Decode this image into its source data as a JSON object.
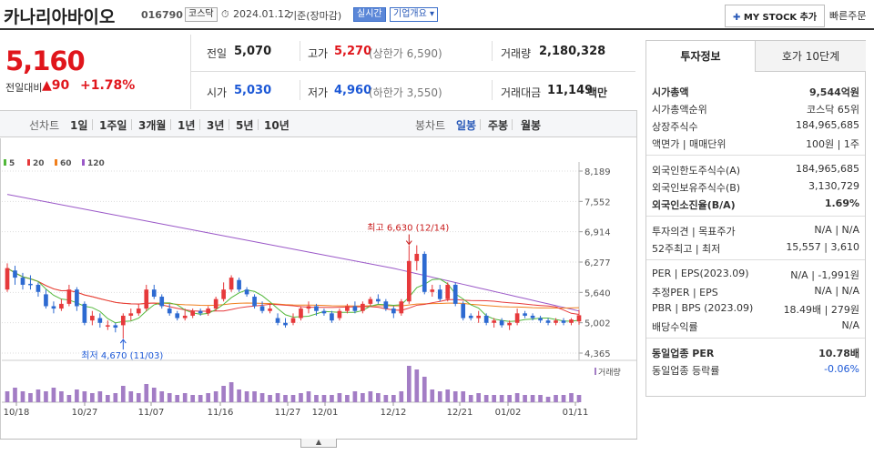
{
  "header": {
    "name": "카나리아바이오",
    "code": "016790",
    "market": "코스닥",
    "date": "2024.01.12",
    "basis": "기준(장마감)",
    "realtime": "실시간",
    "company_info": "기업개요",
    "mystock": "MY STOCK 추가",
    "quick_order": "빠른주문"
  },
  "price": {
    "current": "5,160",
    "change_label": "전일대비",
    "change": "90",
    "change_pct": "+1.78%"
  },
  "summary": {
    "prev_label": "전일",
    "prev": "5,070",
    "high_label": "고가",
    "high": "5,270",
    "upper_limit": "(상한가 6,590)",
    "volume_label": "거래량",
    "volume": "2,180,328",
    "open_label": "시가",
    "open": "5,030",
    "low_label": "저가",
    "low": "4,960",
    "lower_limit": "(하한가 3,550)",
    "amount_label": "거래대금",
    "amount": "11,149",
    "amount_unit": "백만"
  },
  "toolbar": {
    "line_label": "선차트",
    "periods": [
      "1일",
      "1주일",
      "3개월",
      "1년",
      "3년",
      "5년",
      "10년"
    ],
    "candle_label": "봉차트",
    "candles": [
      "일봉",
      "주봉",
      "월봉"
    ]
  },
  "chart_data": {
    "type": "candlestick",
    "legend": [
      {
        "name": "5",
        "color": "#52b83a"
      },
      {
        "name": "20",
        "color": "#e6393b"
      },
      {
        "name": "60",
        "color": "#f07f1d"
      },
      {
        "name": "120",
        "color": "#9b59c8"
      }
    ],
    "y_ticks": [
      "8,189",
      "7,552",
      "6,914",
      "6,277",
      "5,640",
      "5,002",
      "4,365"
    ],
    "ylim": [
      4365,
      8189
    ],
    "x_ticks": [
      "10/18",
      "10/27",
      "11/07",
      "11/16",
      "11/27",
      "12/01",
      "12/12",
      "12/21",
      "01/02",
      "01/11"
    ],
    "high_annotation": "최고 6,630 (12/14)",
    "low_annotation": "최저 4,670 (11/03)",
    "volume_label": "거래량",
    "candles": [
      {
        "o": 5700,
        "c": 6150,
        "h": 6250,
        "l": 5650
      },
      {
        "o": 6100,
        "c": 5950,
        "h": 6200,
        "l": 5800
      },
      {
        "o": 5950,
        "c": 5800,
        "h": 6050,
        "l": 5700
      },
      {
        "o": 5820,
        "c": 5800,
        "h": 6000,
        "l": 5700
      },
      {
        "o": 5800,
        "c": 5650,
        "h": 5850,
        "l": 5550
      },
      {
        "o": 5600,
        "c": 5350,
        "h": 5700,
        "l": 5300
      },
      {
        "o": 5350,
        "c": 5300,
        "h": 5450,
        "l": 5200
      },
      {
        "o": 5300,
        "c": 5400,
        "h": 5500,
        "l": 5250
      },
      {
        "o": 5400,
        "c": 5700,
        "h": 5800,
        "l": 5350
      },
      {
        "o": 5700,
        "c": 5350,
        "h": 5750,
        "l": 5250
      },
      {
        "o": 5400,
        "c": 5000,
        "h": 5450,
        "l": 4950
      },
      {
        "o": 5050,
        "c": 5150,
        "h": 5250,
        "l": 4950
      },
      {
        "o": 5100,
        "c": 5000,
        "h": 5200,
        "l": 4900
      },
      {
        "o": 4950,
        "c": 4950,
        "h": 5050,
        "l": 4850
      },
      {
        "o": 4950,
        "c": 4900,
        "h": 5000,
        "l": 4800
      },
      {
        "o": 4950,
        "c": 5150,
        "h": 5200,
        "l": 4670
      },
      {
        "o": 5150,
        "c": 5200,
        "h": 5300,
        "l": 5050
      },
      {
        "o": 5200,
        "c": 5300,
        "h": 5400,
        "l": 5150
      },
      {
        "o": 5300,
        "c": 5700,
        "h": 5800,
        "l": 5250
      },
      {
        "o": 5700,
        "c": 5550,
        "h": 5800,
        "l": 5500
      },
      {
        "o": 5550,
        "c": 5350,
        "h": 5600,
        "l": 5300
      },
      {
        "o": 5300,
        "c": 5200,
        "h": 5400,
        "l": 5150
      },
      {
        "o": 5200,
        "c": 5100,
        "h": 5250,
        "l": 5050
      },
      {
        "o": 5100,
        "c": 5150,
        "h": 5300,
        "l": 5050
      },
      {
        "o": 5150,
        "c": 5250,
        "h": 5300,
        "l": 5100
      },
      {
        "o": 5250,
        "c": 5200,
        "h": 5300,
        "l": 5150
      },
      {
        "o": 5200,
        "c": 5300,
        "h": 5350,
        "l": 5150
      },
      {
        "o": 5300,
        "c": 5500,
        "h": 5550,
        "l": 5250
      },
      {
        "o": 5500,
        "c": 5700,
        "h": 5850,
        "l": 5450
      },
      {
        "o": 5700,
        "c": 5950,
        "h": 6000,
        "l": 5650
      },
      {
        "o": 5900,
        "c": 5700,
        "h": 5950,
        "l": 5650
      },
      {
        "o": 5700,
        "c": 5600,
        "h": 5750,
        "l": 5550
      },
      {
        "o": 5550,
        "c": 5350,
        "h": 5600,
        "l": 5300
      },
      {
        "o": 5350,
        "c": 5250,
        "h": 5450,
        "l": 5200
      },
      {
        "o": 5250,
        "c": 5300,
        "h": 5400,
        "l": 5200
      },
      {
        "o": 5100,
        "c": 5000,
        "h": 5200,
        "l": 4950
      },
      {
        "o": 5000,
        "c": 4950,
        "h": 5100,
        "l": 4900
      },
      {
        "o": 5000,
        "c": 5100,
        "h": 5200,
        "l": 4950
      },
      {
        "o": 5100,
        "c": 5300,
        "h": 5350,
        "l": 5050
      },
      {
        "o": 5300,
        "c": 5350,
        "h": 5450,
        "l": 5200
      },
      {
        "o": 5350,
        "c": 5250,
        "h": 5400,
        "l": 5150
      },
      {
        "o": 5250,
        "c": 5200,
        "h": 5300,
        "l": 5150
      },
      {
        "o": 5200,
        "c": 5050,
        "h": 5250,
        "l": 5000
      },
      {
        "o": 5100,
        "c": 5250,
        "h": 5300,
        "l": 5050
      },
      {
        "o": 5250,
        "c": 5350,
        "h": 5400,
        "l": 5200
      },
      {
        "o": 5350,
        "c": 5250,
        "h": 5450,
        "l": 5200
      },
      {
        "o": 5250,
        "c": 5400,
        "h": 5450,
        "l": 5200
      },
      {
        "o": 5400,
        "c": 5500,
        "h": 5550,
        "l": 5350
      },
      {
        "o": 5500,
        "c": 5450,
        "h": 5600,
        "l": 5400
      },
      {
        "o": 5450,
        "c": 5300,
        "h": 5500,
        "l": 5250
      },
      {
        "o": 5300,
        "c": 5200,
        "h": 5350,
        "l": 5100
      },
      {
        "o": 5200,
        "c": 5450,
        "h": 5500,
        "l": 5150
      },
      {
        "o": 5450,
        "c": 6300,
        "h": 6630,
        "l": 5400
      },
      {
        "o": 6300,
        "c": 6450,
        "h": 6630,
        "l": 6100
      },
      {
        "o": 6450,
        "c": 5650,
        "h": 6500,
        "l": 5600
      },
      {
        "o": 5650,
        "c": 5700,
        "h": 5800,
        "l": 5550
      },
      {
        "o": 5700,
        "c": 5500,
        "h": 5800,
        "l": 5450
      },
      {
        "o": 5500,
        "c": 5800,
        "h": 5850,
        "l": 5450
      },
      {
        "o": 5800,
        "c": 5400,
        "h": 5850,
        "l": 5350
      },
      {
        "o": 5400,
        "c": 5100,
        "h": 5450,
        "l": 5050
      },
      {
        "o": 5150,
        "c": 5100,
        "h": 5200,
        "l": 5050
      },
      {
        "o": 5100,
        "c": 5150,
        "h": 5250,
        "l": 5000
      },
      {
        "o": 5150,
        "c": 5000,
        "h": 5200,
        "l": 4950
      },
      {
        "o": 5000,
        "c": 5050,
        "h": 5100,
        "l": 4900
      },
      {
        "o": 5050,
        "c": 4950,
        "h": 5100,
        "l": 4900
      },
      {
        "o": 4950,
        "c": 5000,
        "h": 5050,
        "l": 4850
      },
      {
        "o": 5000,
        "c": 5200,
        "h": 5300,
        "l": 4950
      },
      {
        "o": 5200,
        "c": 5150,
        "h": 5250,
        "l": 5100
      },
      {
        "o": 5150,
        "c": 5100,
        "h": 5200,
        "l": 5050
      },
      {
        "o": 5100,
        "c": 5050,
        "h": 5150,
        "l": 5000
      },
      {
        "o": 5050,
        "c": 5000,
        "h": 5100,
        "l": 4950
      },
      {
        "o": 5000,
        "c": 5050,
        "h": 5100,
        "l": 4950
      },
      {
        "o": 5050,
        "c": 5000,
        "h": 5100,
        "l": 4950
      },
      {
        "o": 5000,
        "c": 5070,
        "h": 5100,
        "l": 4950
      },
      {
        "o": 5030,
        "c": 5160,
        "h": 5270,
        "l": 4960
      }
    ],
    "volumes": [
      0.3,
      0.4,
      0.3,
      0.25,
      0.35,
      0.3,
      0.4,
      0.3,
      0.2,
      0.35,
      0.3,
      0.25,
      0.3,
      0.2,
      0.25,
      0.45,
      0.3,
      0.25,
      0.5,
      0.4,
      0.3,
      0.25,
      0.2,
      0.25,
      0.2,
      0.2,
      0.25,
      0.3,
      0.45,
      0.55,
      0.35,
      0.3,
      0.3,
      0.25,
      0.2,
      0.25,
      0.2,
      0.2,
      0.25,
      0.3,
      0.2,
      0.2,
      0.2,
      0.25,
      0.2,
      0.3,
      0.25,
      0.3,
      0.25,
      0.2,
      0.2,
      0.3,
      1.0,
      0.9,
      0.7,
      0.35,
      0.3,
      0.35,
      0.3,
      0.3,
      0.2,
      0.25,
      0.2,
      0.2,
      0.2,
      0.2,
      0.25,
      0.2,
      0.2,
      0.2,
      0.15,
      0.2,
      0.2,
      0.25,
      0.2
    ]
  },
  "tabs": {
    "invest": "투자정보",
    "quote": "호가 10단계"
  },
  "invest": {
    "rows1": [
      {
        "label": "시가총액",
        "value": "9,544억원",
        "bold": true
      },
      {
        "label": "시가총액순위",
        "value": "코스닥 65위"
      },
      {
        "label": "상장주식수",
        "value": "184,965,685"
      },
      {
        "label": "액면가 | 매매단위",
        "value": "100원 | 1주"
      }
    ],
    "rows2": [
      {
        "label": "외국인한도주식수(A)",
        "value": "184,965,685"
      },
      {
        "label": "외국인보유주식수(B)",
        "value": "3,130,729"
      },
      {
        "label": "외국인소진율(B/A)",
        "value": "1.69%",
        "bold": true
      }
    ],
    "rows3": [
      {
        "label": "투자의견 | 목표주가",
        "value": "N/A | N/A"
      },
      {
        "label": "52주최고 | 최저",
        "value": "15,557 | 3,610"
      }
    ],
    "rows4": [
      {
        "label": "PER | EPS(2023.09)",
        "value": "N/A | -1,991원"
      },
      {
        "label": "추정PER | EPS",
        "value": "N/A | N/A"
      },
      {
        "label": "PBR | BPS (2023.09)",
        "value": "18.49배 | 279원"
      },
      {
        "label": "배당수익률",
        "value": "N/A"
      }
    ],
    "rows5": [
      {
        "label": "동일업종 PER",
        "value": "10.78배",
        "bold": true
      },
      {
        "label": "동일업종 등락률",
        "value": "-0.06%",
        "blue": true
      }
    ]
  }
}
